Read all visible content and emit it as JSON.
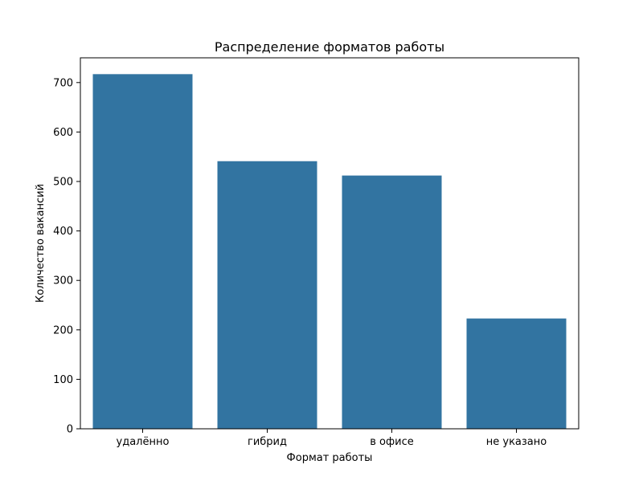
{
  "chart_data": {
    "type": "bar",
    "title": "Распределение форматов работы",
    "xlabel": "Формат работы",
    "ylabel": "Количество вакансий",
    "categories": [
      "удалённо",
      "гибрид",
      "в офисе",
      "не указано"
    ],
    "values": [
      717,
      541,
      512,
      223
    ],
    "ylim": [
      0,
      750
    ],
    "yticks": [
      0,
      100,
      200,
      300,
      400,
      500,
      600,
      700
    ],
    "bar_color": "#3274a1",
    "grid": false,
    "legend": "none"
  }
}
